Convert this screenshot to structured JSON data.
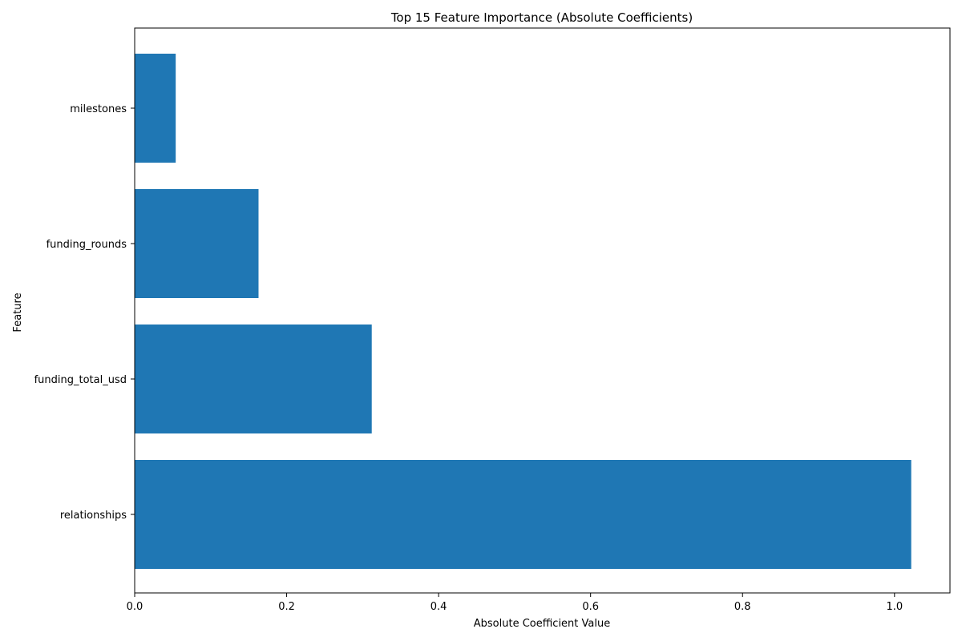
{
  "chart_data": {
    "type": "bar",
    "orientation": "horizontal",
    "title": "Top 15 Feature Importance (Absolute Coefficients)",
    "xlabel": "Absolute Coefficient Value",
    "ylabel": "Feature",
    "categories": [
      "relationships",
      "funding_total_usd",
      "funding_rounds",
      "milestones"
    ],
    "values": [
      1.022,
      0.312,
      0.163,
      0.054
    ],
    "xlim": [
      0,
      1.073
    ],
    "xticks": [
      0.0,
      0.2,
      0.4,
      0.6,
      0.8,
      1.0
    ],
    "xtick_labels": [
      "0.0",
      "0.2",
      "0.4",
      "0.6",
      "0.8",
      "1.0"
    ],
    "bar_color": "#1f77b4",
    "grid": false
  }
}
